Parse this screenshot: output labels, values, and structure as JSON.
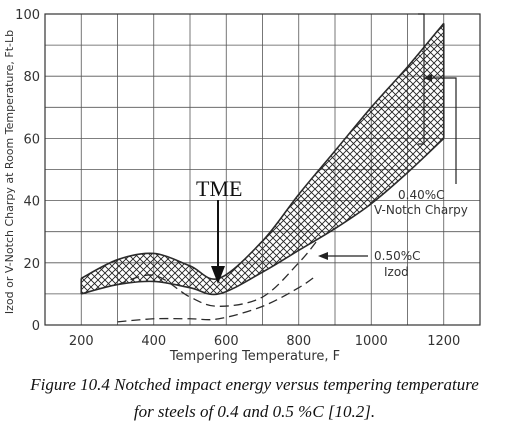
{
  "chart_data": {
    "type": "area",
    "xlabel": "Tempering Temperature, F",
    "ylabel": "Izod or V-Notch Charpy at Room Temperature, Ft-Lb",
    "xlim": [
      100,
      1300
    ],
    "ylim": [
      0,
      100
    ],
    "x_ticks": [
      "200",
      "400",
      "600",
      "800",
      "1000",
      "1200"
    ],
    "y_ticks": [
      "0",
      "20",
      "40",
      "60",
      "80",
      "100"
    ],
    "grid": true,
    "series": [
      {
        "name": "0.40%C V-Notch Charpy",
        "style": "crosshatch band",
        "upper": [
          [
            200,
            15
          ],
          [
            300,
            21
          ],
          [
            400,
            23
          ],
          [
            500,
            19
          ],
          [
            580,
            15
          ],
          [
            700,
            27
          ],
          [
            800,
            42
          ],
          [
            900,
            56
          ],
          [
            1000,
            70
          ],
          [
            1100,
            83
          ],
          [
            1200,
            97
          ]
        ],
        "lower": [
          [
            200,
            10
          ],
          [
            300,
            13
          ],
          [
            400,
            14
          ],
          [
            500,
            12
          ],
          [
            580,
            10
          ],
          [
            700,
            17
          ],
          [
            800,
            24
          ],
          [
            900,
            31
          ],
          [
            1000,
            39
          ],
          [
            1100,
            49
          ],
          [
            1200,
            60
          ]
        ]
      },
      {
        "name": "0.50%C Izod",
        "style": "dashed band",
        "upper": [
          [
            300,
            13
          ],
          [
            400,
            16
          ],
          [
            500,
            9
          ],
          [
            580,
            6
          ],
          [
            700,
            9
          ],
          [
            800,
            20
          ],
          [
            850,
            27
          ]
        ],
        "lower": [
          [
            300,
            1
          ],
          [
            400,
            2
          ],
          [
            500,
            2
          ],
          [
            580,
            2
          ],
          [
            700,
            6
          ],
          [
            800,
            12
          ],
          [
            850,
            16
          ]
        ]
      }
    ],
    "annotations": {
      "tme": "TME",
      "charpy_label_1": "0.40%C",
      "charpy_label_2": "V-Notch Charpy",
      "izod_label_1": "0.50%C",
      "izod_label_2": "Izod"
    },
    "colors": {
      "line": "#2b2b2b",
      "grid": "#555555"
    }
  },
  "caption": {
    "line1": "Figure 10.4  Notched impact energy versus tempering temperature",
    "line2": "for steels of 0.4 and 0.5 %C [10.2]."
  }
}
